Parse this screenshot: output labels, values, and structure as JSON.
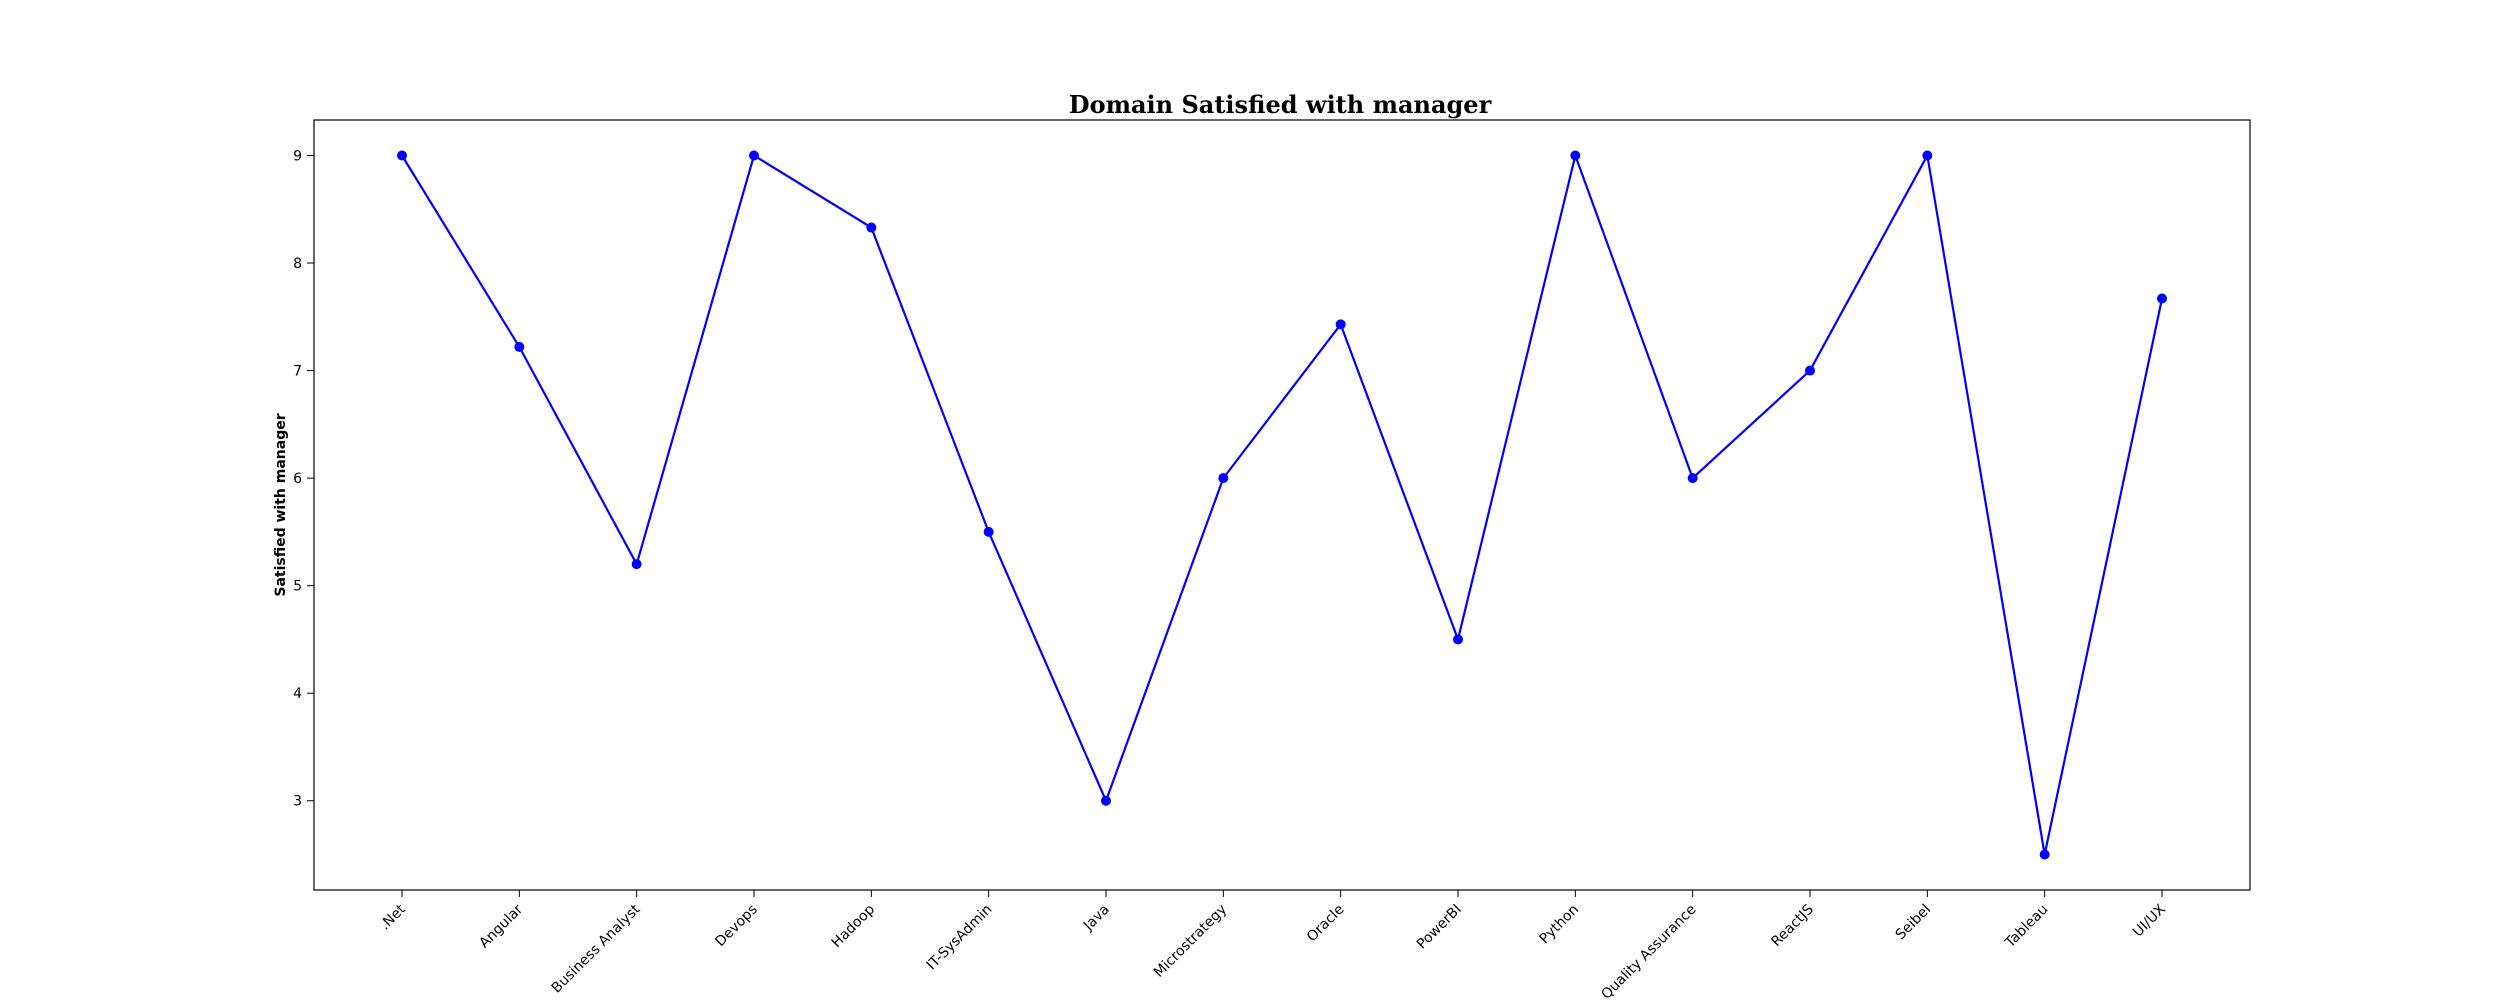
{
  "chart_data": {
    "type": "line",
    "title": "Domain Satisfied with manager",
    "xlabel": "",
    "ylabel": "Satisfied with manager",
    "categories": [
      ".Net",
      "Angular",
      "Business Analyst",
      "Devops",
      "Hadoop",
      "IT-SysAdmin",
      "Java",
      "Microstrategy",
      "Oracle",
      "PowerBI",
      "Python",
      "Quality Assurance",
      "ReactJS",
      "Seibel",
      "Tableau",
      "UI/UX"
    ],
    "series": [
      {
        "values": [
          9.0,
          7.22,
          5.2,
          9.0,
          8.33,
          5.5,
          3.0,
          6.0,
          7.43,
          4.5,
          9.0,
          6.0,
          7.0,
          9.0,
          2.5,
          7.67
        ]
      }
    ],
    "yticks": [
      3,
      4,
      5,
      6,
      7,
      8,
      9
    ],
    "ylim": [
      2.17,
      9.33
    ],
    "grid": false,
    "legend": "none",
    "line_color": "#0000ff",
    "marker": "circle"
  }
}
